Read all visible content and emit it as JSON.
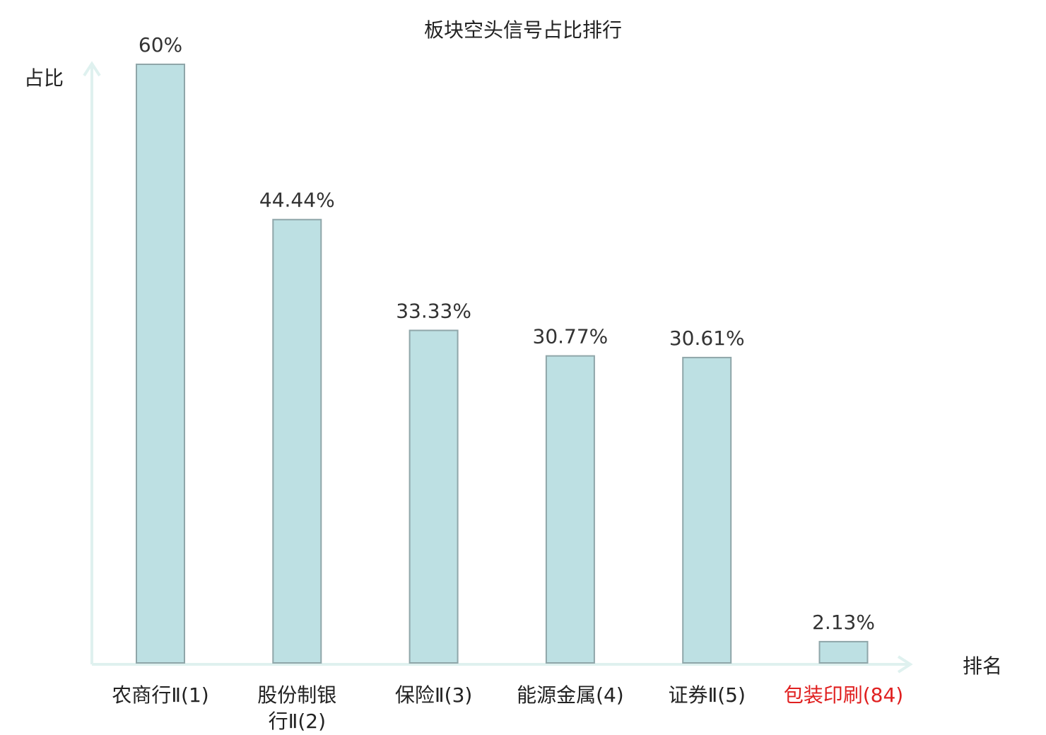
{
  "chart_data": {
    "type": "bar",
    "title": "板块空头信号占比排行",
    "ylabel": "占比",
    "xlabel": "排名",
    "categories": [
      [
        "农商行Ⅱ(1)"
      ],
      [
        "股份制银",
        "行Ⅱ(2)"
      ],
      [
        "保险Ⅱ(3)"
      ],
      [
        "能源金属(4)"
      ],
      [
        "证券Ⅱ(5)"
      ],
      [
        "包装印刷(84)"
      ]
    ],
    "values": [
      60,
      44.44,
      33.33,
      30.77,
      30.61,
      2.13
    ],
    "value_labels": [
      "60%",
      "44.44%",
      "33.33%",
      "30.77%",
      "30.61%",
      "2.13%"
    ],
    "highlight": [
      false,
      false,
      false,
      false,
      false,
      true
    ],
    "ylim": [
      0,
      60
    ],
    "grid": false,
    "colors": {
      "bar_fill": "#bde0e3",
      "bar_stroke": "#8fa6a9",
      "axis": "#dff1ef",
      "text": "#222222",
      "highlight_text": "#e02020"
    }
  }
}
